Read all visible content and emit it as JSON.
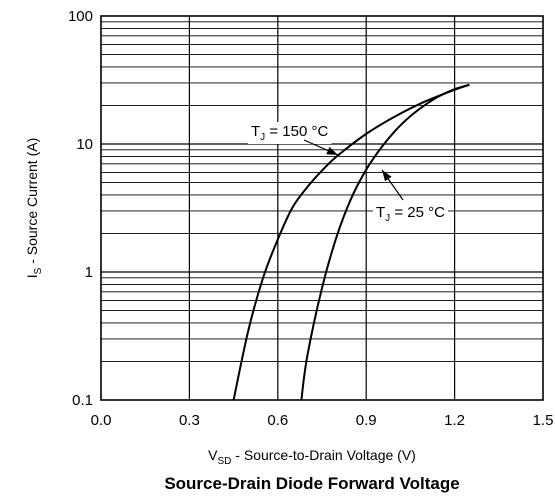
{
  "chart_data": {
    "type": "line",
    "title": "Source-Drain Diode Forward Voltage",
    "xlabel": {
      "main": "V",
      "sub": "SD",
      "rest": " - Source-to-Drain Voltage (V)"
    },
    "ylabel": {
      "main": "I",
      "sub": "S",
      "rest": " - Source Current (A)"
    },
    "x_scale": "linear",
    "y_scale": "log",
    "xlim": [
      0.0,
      1.5
    ],
    "ylim": [
      0.1,
      100
    ],
    "x_ticks": [
      0.0,
      0.3,
      0.6,
      0.9,
      1.2,
      1.5
    ],
    "x_tick_labels": [
      "0.0",
      "0.3",
      "0.6",
      "0.9",
      "1.2",
      "1.5"
    ],
    "y_ticks": [
      0.1,
      1,
      10,
      100
    ],
    "y_tick_labels": [
      "0.1",
      "1",
      "10",
      "100"
    ],
    "grid": true,
    "series": [
      {
        "name": "T_J = 150 °C",
        "x": [
          0.45,
          0.5,
          0.55,
          0.6,
          0.65,
          0.7,
          0.75,
          0.8,
          0.9,
          1.0,
          1.1,
          1.2,
          1.25
        ],
        "y": [
          0.1,
          0.35,
          0.9,
          1.8,
          3.2,
          4.6,
          6.2,
          8.0,
          12.0,
          16.5,
          21.5,
          26.5,
          29.0
        ]
      },
      {
        "name": "T_J = 25 °C",
        "x": [
          0.68,
          0.7,
          0.75,
          0.8,
          0.85,
          0.9,
          0.95,
          1.0,
          1.05,
          1.1,
          1.15,
          1.2,
          1.25
        ],
        "y": [
          0.1,
          0.22,
          0.75,
          1.9,
          3.8,
          6.3,
          9.3,
          12.8,
          16.5,
          20.2,
          23.8,
          26.8,
          29.0
        ]
      }
    ],
    "annotations": [
      {
        "id": "tj150",
        "main": "T",
        "sub": "J",
        "rest": " = 150 °C"
      },
      {
        "id": "tj25",
        "main": "T",
        "sub": "J",
        "rest": " = 25 °C"
      }
    ]
  }
}
